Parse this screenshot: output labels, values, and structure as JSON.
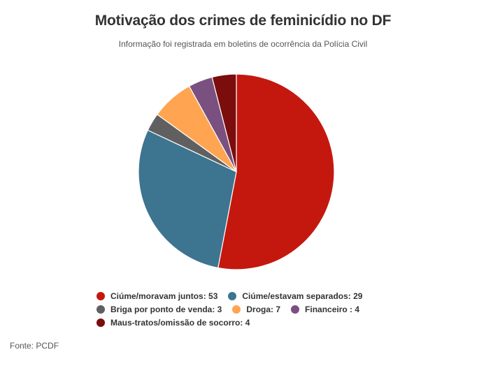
{
  "chart_data": {
    "type": "pie",
    "title": "Motivação dos crimes de feminicídio no DF",
    "subtitle": "Informação foi registrada em boletins de ocorrência da Polícia Civil",
    "slices": [
      {
        "label": "Ciúme/moravam juntos",
        "value": 53,
        "color": "#c4180f",
        "legend": "Ciúme/moravam juntos: 53"
      },
      {
        "label": "Ciúme/estavam separados",
        "value": 29,
        "color": "#3d7490",
        "legend": "Ciúme/estavam separados: 29"
      },
      {
        "label": "Briga por ponto de venda",
        "value": 3,
        "color": "#606060",
        "legend": "Briga por ponto de venda: 3"
      },
      {
        "label": "Droga",
        "value": 7,
        "color": "#ffa552",
        "legend": "Droga: 7"
      },
      {
        "label": "Financeiro",
        "value": 4,
        "color": "#7a5080",
        "legend": "Financeiro : 4"
      },
      {
        "label": "Maus-tratos/omissão de socorro",
        "value": 4,
        "color": "#7b0d0d",
        "legend": "Maus-tratos/omissão de socorro: 4"
      }
    ],
    "source": "Fonte: PCDF"
  }
}
